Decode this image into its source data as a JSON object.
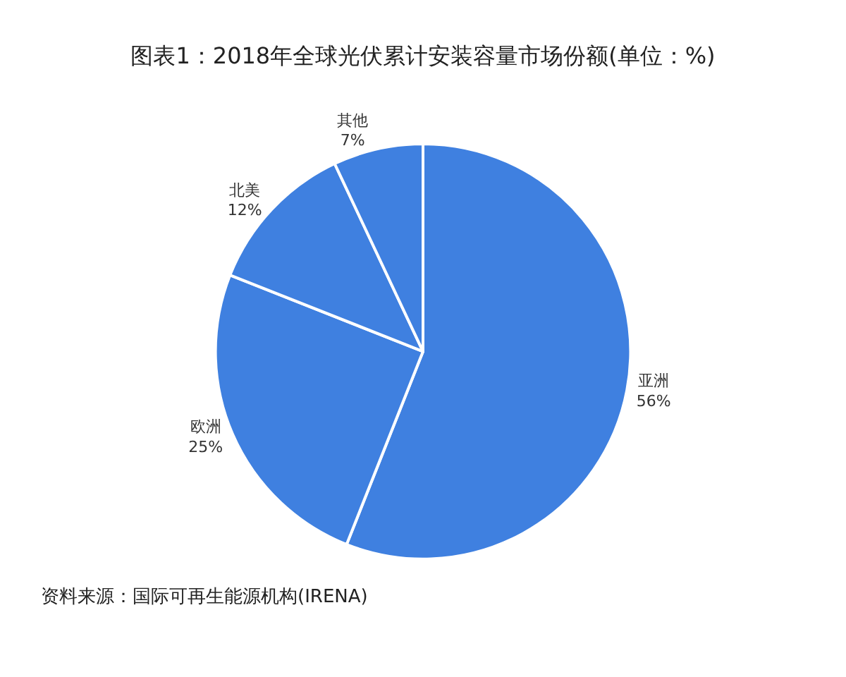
{
  "chart_data": {
    "type": "pie",
    "title": "图表1：2018年全球光伏累计安装容量市场份额(单位：%)",
    "categories": [
      "亚洲",
      "欧洲",
      "北美",
      "其他"
    ],
    "values": [
      56,
      25,
      12,
      7
    ],
    "value_labels": [
      "56%",
      "25%",
      "12%",
      "7%"
    ],
    "colors": [
      "#3f80e0",
      "#3f80e0",
      "#3f80e0",
      "#3f80e0"
    ],
    "legend": false,
    "annotations": [
      "资料来源：国际可再生能源机构(IRENA)"
    ]
  }
}
